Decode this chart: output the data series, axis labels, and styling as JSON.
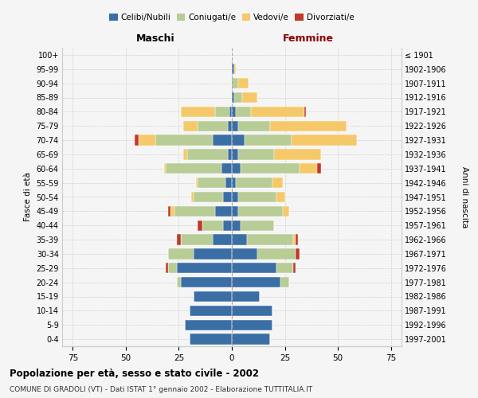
{
  "age_groups": [
    "0-4",
    "5-9",
    "10-14",
    "15-19",
    "20-24",
    "25-29",
    "30-34",
    "35-39",
    "40-44",
    "45-49",
    "50-54",
    "55-59",
    "60-64",
    "65-69",
    "70-74",
    "75-79",
    "80-84",
    "85-89",
    "90-94",
    "95-99",
    "100+"
  ],
  "birth_years": [
    "1997-2001",
    "1992-1996",
    "1987-1991",
    "1982-1986",
    "1977-1981",
    "1972-1976",
    "1967-1971",
    "1962-1966",
    "1957-1961",
    "1952-1956",
    "1947-1951",
    "1942-1946",
    "1937-1941",
    "1932-1936",
    "1927-1931",
    "1922-1926",
    "1917-1921",
    "1912-1916",
    "1907-1911",
    "1902-1906",
    "≤ 1901"
  ],
  "maschi": {
    "celibi": [
      20,
      22,
      20,
      18,
      24,
      26,
      18,
      9,
      4,
      8,
      4,
      3,
      5,
      2,
      9,
      2,
      1,
      0,
      0,
      0,
      0
    ],
    "coniugati": [
      0,
      0,
      0,
      0,
      2,
      4,
      12,
      15,
      10,
      19,
      14,
      13,
      26,
      19,
      27,
      14,
      7,
      0,
      0,
      0,
      0
    ],
    "vedovi": [
      0,
      0,
      0,
      0,
      0,
      0,
      0,
      0,
      0,
      2,
      1,
      1,
      1,
      2,
      8,
      7,
      16,
      0,
      0,
      0,
      0
    ],
    "divorziati": [
      0,
      0,
      0,
      0,
      0,
      1,
      0,
      2,
      2,
      1,
      0,
      0,
      0,
      0,
      2,
      0,
      0,
      0,
      0,
      0,
      0
    ]
  },
  "femmine": {
    "nubili": [
      18,
      19,
      19,
      13,
      23,
      21,
      12,
      7,
      4,
      3,
      3,
      2,
      4,
      3,
      6,
      3,
      2,
      1,
      0,
      1,
      0
    ],
    "coniugate": [
      0,
      0,
      0,
      0,
      4,
      8,
      18,
      22,
      16,
      21,
      18,
      17,
      28,
      17,
      22,
      15,
      7,
      4,
      3,
      0,
      0
    ],
    "vedove": [
      0,
      0,
      0,
      0,
      0,
      0,
      0,
      1,
      0,
      3,
      4,
      5,
      8,
      22,
      31,
      36,
      25,
      7,
      5,
      1,
      0
    ],
    "divorziate": [
      0,
      0,
      0,
      0,
      0,
      1,
      2,
      1,
      0,
      0,
      0,
      0,
      2,
      0,
      0,
      0,
      1,
      0,
      0,
      0,
      0
    ]
  },
  "colors": {
    "celibi": "#3a6ea5",
    "coniugati": "#b8cc96",
    "vedovi": "#f5c96a",
    "divorziati": "#c0392b"
  },
  "xlim": 80,
  "title": "Popolazione per età, sesso e stato civile - 2002",
  "subtitle": "COMUNE DI GRADOLI (VT) - Dati ISTAT 1° gennaio 2002 - Elaborazione TUTTITALIA.IT",
  "ylabel_left": "Fasce di età",
  "ylabel_right": "Anni di nascita",
  "xlabel_maschi": "Maschi",
  "xlabel_femmine": "Femmine",
  "maschi_color": "#000000",
  "femmine_color": "#8b0000",
  "bg_color": "#f5f5f5",
  "grid_color": "#cccccc"
}
